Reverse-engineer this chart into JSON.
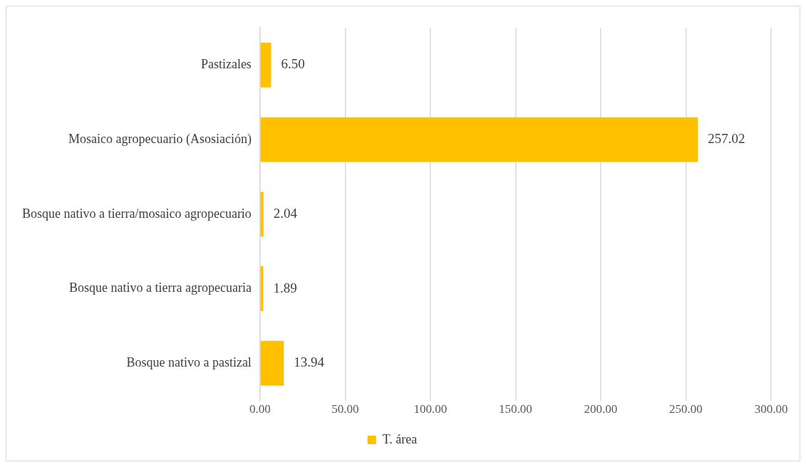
{
  "chart_data": {
    "type": "bar",
    "orientation": "horizontal",
    "categories": [
      "Pastizales",
      "Mosaico agropecuario (Asosiación)",
      "Bosque nativo a tierra/mosaico agropecuario",
      "Bosque nativo a tierra agropecuaria",
      "Bosque nativo a pastizal"
    ],
    "series": [
      {
        "name": "T. área",
        "color": "#ffc000",
        "values": [
          6.5,
          257.02,
          2.04,
          1.89,
          13.94
        ],
        "value_labels": [
          "6.50",
          "257.02",
          "2.04",
          "1.89",
          "13.94"
        ]
      }
    ],
    "xlim": [
      0,
      300
    ],
    "xticks": [
      {
        "value": 0,
        "label": "0.00"
      },
      {
        "value": 50,
        "label": "50.00"
      },
      {
        "value": 100,
        "label": "100.00"
      },
      {
        "value": 150,
        "label": "150.00"
      },
      {
        "value": 200,
        "label": "200.00"
      },
      {
        "value": 250,
        "label": "250.00"
      },
      {
        "value": 300,
        "label": "300.00"
      }
    ],
    "grid": "x",
    "legend": "bottom"
  }
}
